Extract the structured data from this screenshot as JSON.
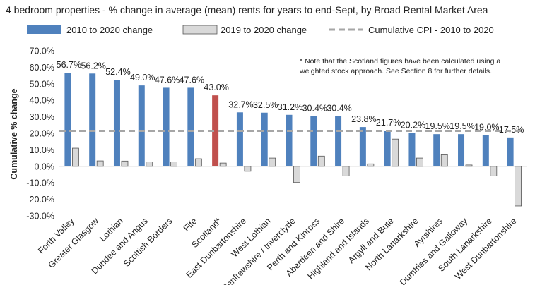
{
  "chart_data": {
    "type": "bar",
    "title": "4 bedroom properties - % change in average (mean) rents for years to end-Sept, by Broad Rental Market Area",
    "ylabel": "Cumulative % change",
    "xlabel": "",
    "ylim": [
      -30,
      70
    ],
    "yticks": [
      "70.0%",
      "60.0%",
      "50.0%",
      "40.0%",
      "30.0%",
      "20.0%",
      "10.0%",
      "0.0%",
      "-10.0%",
      "-20.0%",
      "-30.0%"
    ],
    "ytick_values": [
      70,
      60,
      50,
      40,
      30,
      20,
      10,
      0,
      -10,
      -20,
      -30
    ],
    "categories": [
      "Forth Valley",
      "Greater Glasgow",
      "Lothian",
      "Dundee and Angus",
      "Scottish Borders",
      "Fife",
      "Scotland*",
      "East Dunbartonshire",
      "West Lothian",
      "Renfrewshire / Inverclyde",
      "Perth and Kinross",
      "Aberdeen and Shire",
      "Highland and Islands",
      "Argyll and Bute",
      "North Lanarkshire",
      "Ayrshires",
      "Dumfries and Galloway",
      "South Lanarkshire",
      "West Dunbartonshire"
    ],
    "series": [
      {
        "name": "2010 to 2020 change",
        "color": "#4f81bd",
        "highlight_color": "#c0504d",
        "highlight_index": 6,
        "values": [
          56.7,
          56.2,
          52.4,
          49.0,
          47.6,
          47.6,
          43.0,
          32.7,
          32.5,
          31.2,
          30.4,
          30.4,
          23.8,
          21.7,
          20.2,
          19.5,
          19.5,
          19.0,
          17.5
        ],
        "labels": [
          "56.7%",
          "56.2%",
          "52.4%",
          "49.0%",
          "47.6%",
          "47.6%",
          "43.0%",
          "32.7%",
          "32.5%",
          "31.2%",
          "30.4%",
          "30.4%",
          "23.8%",
          "21.7%",
          "20.2%",
          "19.5%",
          "19.5%",
          "19.0%",
          "17.5%"
        ]
      },
      {
        "name": "2019 to 2020 change",
        "color": "#d9d9d9",
        "values": [
          11.0,
          3.3,
          3.2,
          2.7,
          2.7,
          4.6,
          2.0,
          -3.0,
          5.0,
          -9.8,
          6.2,
          -5.8,
          1.5,
          16.5,
          5.0,
          7.0,
          0.8,
          -5.8,
          -24.0
        ]
      }
    ],
    "reference_line": {
      "name": "Cumulative CPI - 2010 to 2020",
      "value": 21.5,
      "color": "#a6a6a6"
    },
    "annotation": {
      "line1": "* Note that the Scotland figures have been calculated using a",
      "line2": "weighted stock approach.   See Section 8 for further details."
    },
    "legend_position": "top"
  }
}
